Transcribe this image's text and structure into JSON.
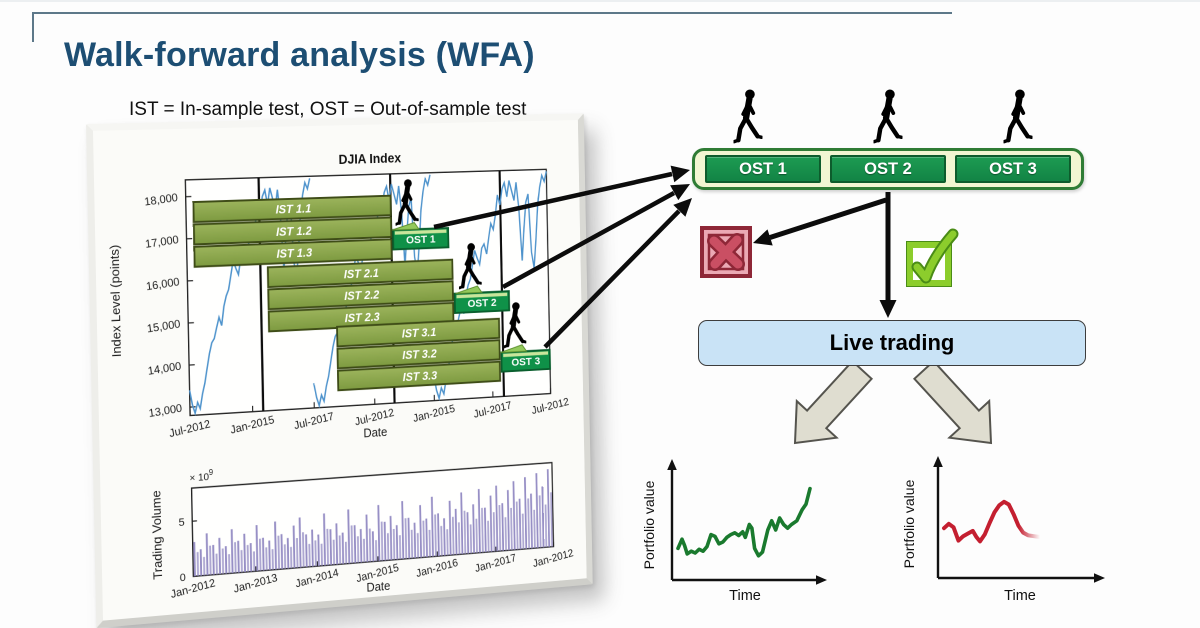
{
  "slide": {
    "title": "Walk-forward analysis (WFA)",
    "subtitle": "IST = In-sample test, OST = Out-of-sample test",
    "accent_color": "#1d4e73"
  },
  "ost_row": {
    "items": [
      "OST 1",
      "OST 2",
      "OST 3"
    ]
  },
  "live_trading_label": "Live trading",
  "wfa": {
    "bar_h": 0.085,
    "colors": {
      "ist_fill_top": "#9cb45c",
      "ist_fill_bottom": "#7d9a40",
      "ist_border": "#3e4c17",
      "ost_fill": "#0f9148",
      "ost_border": "#0a5e2d",
      "ost_lid": "#c9e59b"
    },
    "walk_groups": [
      {
        "divider": 0.195,
        "walker_x": 0.6,
        "bars": [
          {
            "label": "IST 1.1",
            "x": [
              0.02,
              0.555
            ],
            "y": 0.095
          },
          {
            "label": "IST 1.2",
            "x": [
              0.02,
              0.555
            ],
            "y": 0.19
          },
          {
            "label": "IST 1.3",
            "x": [
              0.02,
              0.555
            ],
            "y": 0.285
          }
        ],
        "ost": {
          "label": "OST 1",
          "x": [
            0.56,
            0.715
          ],
          "y": 0.245
        }
      },
      {
        "divider": 0.555,
        "walker_x": 0.775,
        "bars": [
          {
            "label": "IST 2.1",
            "x": [
              0.215,
              0.725
            ],
            "y": 0.385
          },
          {
            "label": "IST 2.2",
            "x": [
              0.215,
              0.725
            ],
            "y": 0.48
          },
          {
            "label": "IST 2.3",
            "x": [
              0.215,
              0.725
            ],
            "y": 0.575
          }
        ],
        "ost": {
          "label": "OST 2",
          "x": [
            0.73,
            0.885
          ],
          "y": 0.535
        }
      },
      {
        "divider": 0.865,
        "walker_x": 0.9,
        "bars": [
          {
            "label": "IST 3.1",
            "x": [
              0.4,
              0.855
            ],
            "y": 0.655
          },
          {
            "label": "IST 3.2",
            "x": [
              0.4,
              0.855
            ],
            "y": 0.75
          },
          {
            "label": "IST 3.3",
            "x": [
              0.4,
              0.855
            ],
            "y": 0.845
          }
        ],
        "ost": {
          "label": "OST 3",
          "x": [
            0.86,
            1.0
          ],
          "y": 0.805
        }
      }
    ]
  },
  "chart_data": [
    {
      "id": "djia-index",
      "type": "line",
      "overlay_type": "gantt-walk-forward",
      "title": "DJIA Index",
      "xlabel": "Date",
      "ylabel": "Index Level (points)",
      "line_color": "#4e93cc",
      "ylim": [
        12800,
        18400
      ],
      "repeats": 3,
      "dividers": [
        0.195,
        0.555,
        0.865
      ],
      "y_ticks": [
        {
          "v": 18000,
          "label": "18,000"
        },
        {
          "v": 17000,
          "label": "17,000"
        },
        {
          "v": 16000,
          "label": "16,000"
        },
        {
          "v": 15000,
          "label": "15,000"
        },
        {
          "v": 14000,
          "label": "14,000"
        },
        {
          "v": 13000,
          "label": "13,000"
        }
      ],
      "x_ticks": [
        "Jul-2012",
        "Jan-2015",
        "Jul-2017",
        "Jul-2012",
        "Jan-2015",
        "Jul-2017",
        "Jul-2012"
      ],
      "epoch_values": [
        13400,
        13050,
        12850,
        13100,
        12950,
        13300,
        13550,
        13900,
        14250,
        14500,
        14600,
        14850,
        15100,
        14900,
        15350,
        15600,
        15750,
        16100,
        16450,
        16250,
        16100,
        16500,
        16600,
        16350,
        16750,
        17100,
        16950,
        17300,
        17800,
        17550,
        17950,
        18100,
        17750,
        18150,
        17900,
        17650,
        18100,
        17450,
        16150,
        16950,
        17600,
        17800,
        16350,
        15950,
        16650,
        17500,
        17950,
        18250,
        18100,
        18350
      ]
    },
    {
      "id": "trading-volume",
      "type": "bar",
      "xlabel": "Date",
      "ylabel": "Trading Volume",
      "exp_prefix": "× 10",
      "exp": "9",
      "bar_color": "#9189c2",
      "ylim": [
        0,
        8
      ],
      "y_ticks": [
        {
          "v": 0,
          "label": "0"
        },
        {
          "v": 5,
          "label": "5"
        }
      ],
      "x_ticks": [
        "Jan-2012",
        "Jan-2013",
        "Jan-2014",
        "Jan-2015",
        "Jan-2016",
        "Jan-2017",
        "Jan-2012"
      ],
      "values": [
        3.1,
        2.4,
        3.8,
        2.7,
        3.3,
        2.5,
        4.0,
        2.9,
        3.5,
        2.6,
        4.2,
        3.0,
        2.7,
        4.4,
        3.2,
        2.8,
        3.9,
        4.6,
        3.0,
        3.4,
        2.9,
        4.8,
        3.3,
        3.8,
        2.9,
        5.0,
        3.5,
        3.1,
        4.4,
        2.8,
        5.2,
        3.6,
        4.1,
        3.2,
        5.4,
        3.8,
        3.3,
        4.9,
        3.6,
        5.6,
        4.0,
        3.5,
        5.1,
        4.3,
        5.8,
        3.9,
        4.6,
        6.0,
        4.2,
        5.3,
        6.2,
        4.5,
        5.7,
        6.5,
        4.8,
        6.8,
        5.2,
        7.1,
        5.8,
        7.4
      ]
    },
    {
      "id": "portfolio-pass",
      "type": "line",
      "xlabel": "Time",
      "ylabel": "Portfolio value",
      "color": "#1a7a2e",
      "trend": "up",
      "points": [
        [
          0,
          0.3
        ],
        [
          0.03,
          0.4
        ],
        [
          0.05,
          0.33
        ],
        [
          0.07,
          0.24
        ],
        [
          0.1,
          0.27
        ],
        [
          0.13,
          0.25
        ],
        [
          0.16,
          0.29
        ],
        [
          0.19,
          0.27
        ],
        [
          0.22,
          0.32
        ],
        [
          0.25,
          0.45
        ],
        [
          0.28,
          0.43
        ],
        [
          0.31,
          0.35
        ],
        [
          0.34,
          0.37
        ],
        [
          0.37,
          0.42
        ],
        [
          0.4,
          0.45
        ],
        [
          0.43,
          0.47
        ],
        [
          0.46,
          0.44
        ],
        [
          0.49,
          0.48
        ],
        [
          0.51,
          0.42
        ],
        [
          0.54,
          0.56
        ],
        [
          0.56,
          0.52
        ],
        [
          0.58,
          0.3
        ],
        [
          0.61,
          0.22
        ],
        [
          0.64,
          0.26
        ],
        [
          0.68,
          0.5
        ],
        [
          0.71,
          0.6
        ],
        [
          0.74,
          0.5
        ],
        [
          0.77,
          0.63
        ],
        [
          0.8,
          0.56
        ],
        [
          0.83,
          0.52
        ],
        [
          0.86,
          0.56
        ],
        [
          0.9,
          0.6
        ],
        [
          0.94,
          0.72
        ],
        [
          0.97,
          0.78
        ],
        [
          1,
          0.95
        ]
      ]
    },
    {
      "id": "portfolio-fail",
      "type": "line",
      "xlabel": "Time",
      "ylabel": "Portfolio value",
      "color": "#c41f30",
      "trend": "up-then-down",
      "fade_tail": true,
      "points": [
        [
          0,
          0.52
        ],
        [
          0.04,
          0.57
        ],
        [
          0.08,
          0.53
        ],
        [
          0.12,
          0.38
        ],
        [
          0.16,
          0.43
        ],
        [
          0.2,
          0.46
        ],
        [
          0.24,
          0.49
        ],
        [
          0.27,
          0.42
        ],
        [
          0.3,
          0.37
        ],
        [
          0.34,
          0.45
        ],
        [
          0.38,
          0.58
        ],
        [
          0.42,
          0.7
        ],
        [
          0.46,
          0.78
        ],
        [
          0.5,
          0.82
        ],
        [
          0.54,
          0.79
        ],
        [
          0.58,
          0.68
        ],
        [
          0.62,
          0.55
        ],
        [
          0.66,
          0.47
        ],
        [
          0.7,
          0.44
        ],
        [
          0.75,
          0.43
        ],
        [
          0.8,
          0.42
        ]
      ]
    }
  ]
}
